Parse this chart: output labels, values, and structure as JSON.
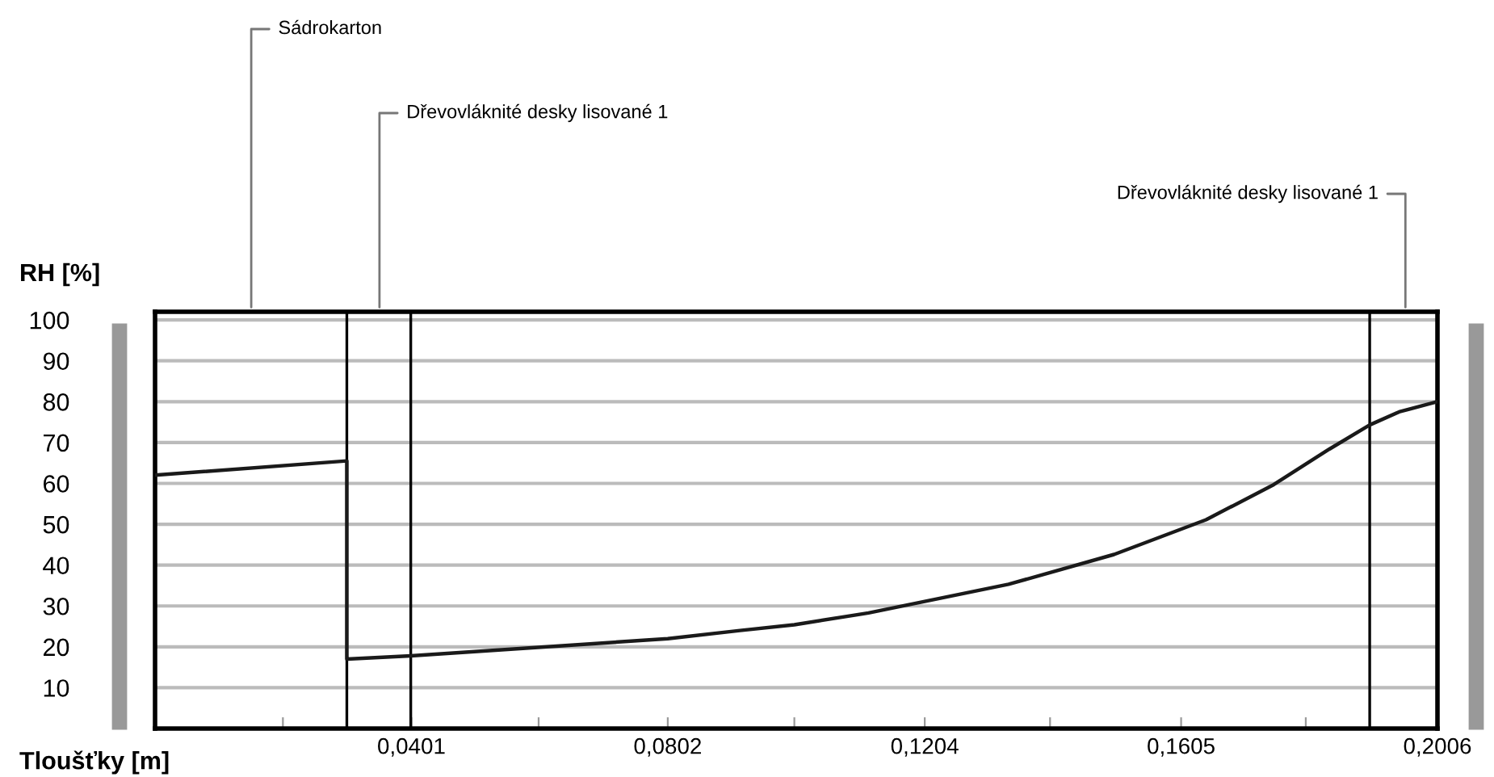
{
  "chart_data": {
    "type": "line",
    "xlabel": "Tloušťky [m]",
    "ylabel": "RH [%]",
    "x": [
      0,
      0.03,
      0.03,
      0.04,
      0.0802,
      0.0915,
      0.1,
      0.1116,
      0.1335,
      0.15,
      0.1644,
      0.175,
      0.1837,
      0.19,
      0.1946,
      0.2006
    ],
    "series": [
      {
        "color": "#1a1a1a",
        "values": [
          62,
          65.5,
          17,
          17.8,
          22,
          24,
          25.4,
          28.3,
          35.3,
          42.6,
          51.1,
          59.7,
          68.4,
          74.3,
          77.5,
          80
        ]
      }
    ],
    "xlim": [
      0,
      0.2006
    ],
    "xticks": [
      {
        "value": 0.02,
        "label": null
      },
      {
        "value": 0.0401,
        "label": "0,0401"
      },
      {
        "value": 0.06,
        "label": null
      },
      {
        "value": 0.0802,
        "label": "0,0802"
      },
      {
        "value": 0.1,
        "label": null
      },
      {
        "value": 0.1204,
        "label": "0,1204"
      },
      {
        "value": 0.14,
        "label": null
      },
      {
        "value": 0.1605,
        "label": "0,1605"
      },
      {
        "value": 0.18,
        "label": null
      },
      {
        "value": 0.2006,
        "label": "0,2006"
      }
    ],
    "ylim": [
      0,
      102
    ],
    "yticks": [
      10,
      20,
      30,
      40,
      50,
      60,
      70,
      80,
      90,
      100
    ],
    "grid": "y",
    "marker": "none",
    "line_style": "solid",
    "ref_lines": [
      {
        "axis": "x",
        "value": 0.03,
        "color": "#000000"
      },
      {
        "axis": "x",
        "value": 0.04,
        "color": "#000000"
      },
      {
        "axis": "x",
        "value": 0.19,
        "color": "#000000"
      }
    ],
    "annotations": [
      "Sádrokarton",
      "Dřevovláknité desky lisované 1",
      "Dřevovláknité desky lisované 1"
    ]
  }
}
